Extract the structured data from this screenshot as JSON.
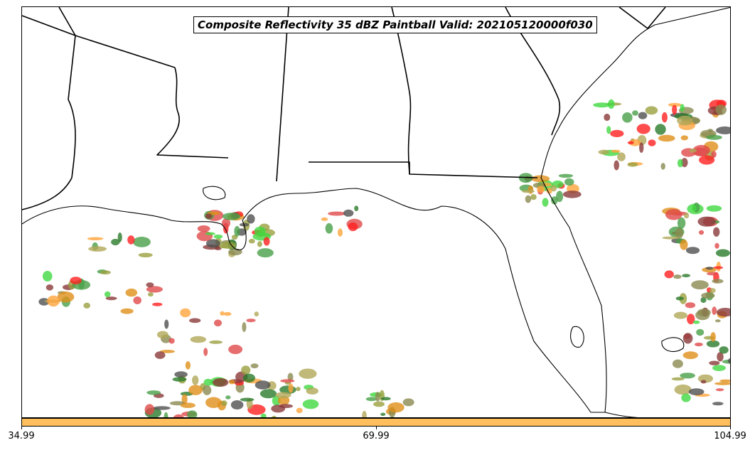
{
  "title": "Composite Reflectivity 35 dBZ Paintball Valid: 202105120000f030",
  "colorbar": {
    "color": "#ffbf5c",
    "ticks": [
      "34.99",
      "69.99",
      "104.99"
    ]
  },
  "colors": {
    "coastline": "#000000",
    "member_colors": [
      "#8b3a3a",
      "#e04a4a",
      "#ff2020",
      "#ffa53c",
      "#e0901a",
      "#9aa040",
      "#b0a858",
      "#4aa048",
      "#2a7a2a",
      "#40d840",
      "#505050",
      "#8a8a50"
    ]
  },
  "map": {
    "region": "Southeastern United States and Gulf of Mexico",
    "features": [
      "state-borders",
      "coastline"
    ]
  }
}
